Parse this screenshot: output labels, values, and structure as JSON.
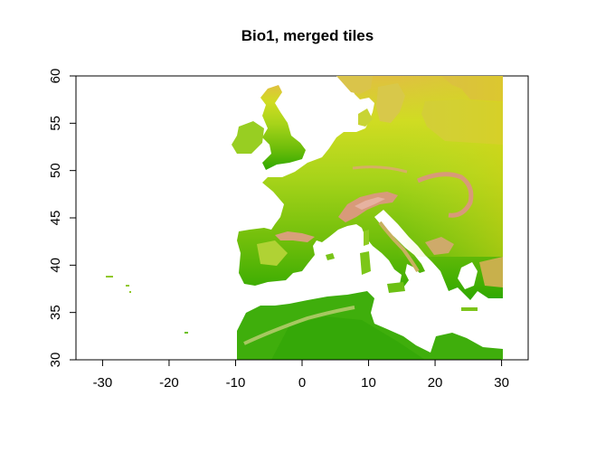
{
  "title": "Bio1, merged tiles",
  "map": {
    "extent": {
      "xmin": -34,
      "xmax": 34,
      "ymin": 30,
      "ymax": 60
    },
    "x_ticks": [
      {
        "value": -30,
        "label": "-30"
      },
      {
        "value": -20,
        "label": "-20"
      },
      {
        "value": -10,
        "label": "-10"
      },
      {
        "value": 0,
        "label": "0"
      },
      {
        "value": 10,
        "label": "10"
      },
      {
        "value": 20,
        "label": "20"
      },
      {
        "value": 30,
        "label": "30"
      }
    ],
    "y_ticks": [
      {
        "value": 30,
        "label": "30"
      },
      {
        "value": 35,
        "label": "35"
      },
      {
        "value": 40,
        "label": "40"
      },
      {
        "value": 45,
        "label": "45"
      },
      {
        "value": 50,
        "label": "50"
      },
      {
        "value": 55,
        "label": "55"
      },
      {
        "value": 60,
        "label": "60"
      }
    ],
    "raster_extent": {
      "xmin": -10,
      "xmax": 30,
      "ymin": 30,
      "ymax": 60
    },
    "color_ramp": [
      "#2ea800",
      "#7cc300",
      "#c8de00",
      "#e2c84e",
      "#dc9a7e",
      "#e8b8a6"
    ],
    "colors": {
      "water": "#ffffff",
      "lowland": "#8fcf2a",
      "warm_south": "#3fb20a",
      "north": "#d7da3a",
      "mountain": "#dca27c",
      "frame": "#000000"
    },
    "legend": "none",
    "grid": false
  }
}
